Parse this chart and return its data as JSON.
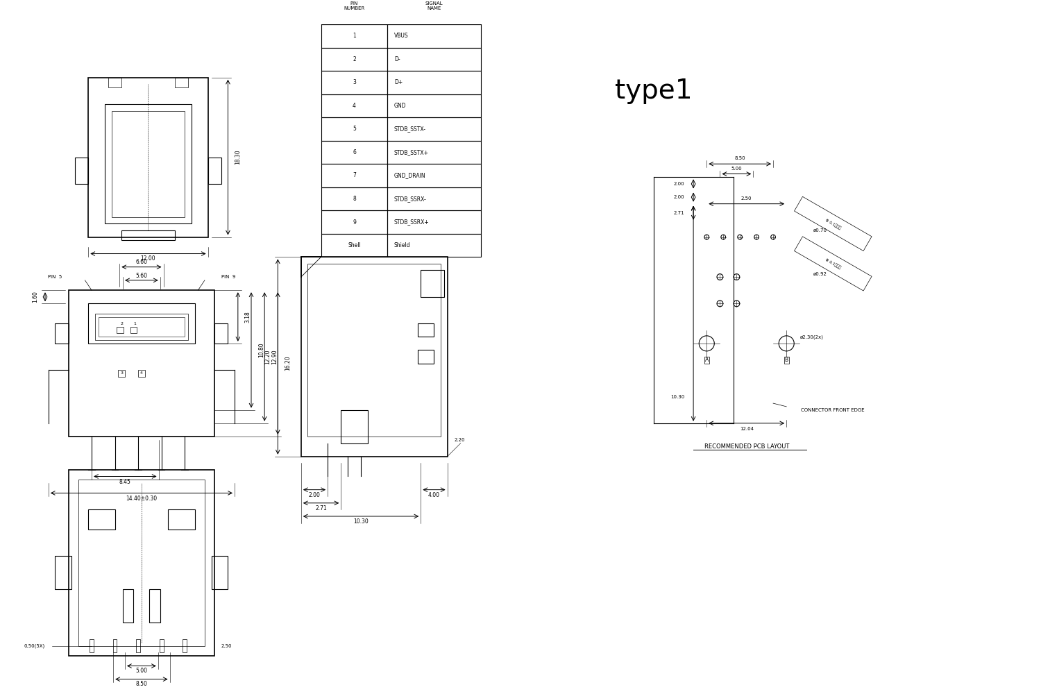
{
  "bg_color": "#ffffff",
  "line_color": "#000000",
  "title": "type1",
  "table_headers": [
    "PIN\nNUMBER",
    "SIGNAL\nNAME"
  ],
  "table_rows": [
    [
      "1",
      "VBUS"
    ],
    [
      "2",
      "D-"
    ],
    [
      "3",
      "D+"
    ],
    [
      "4",
      "GND"
    ],
    [
      "5",
      "STDB_SSTX-"
    ],
    [
      "6",
      "STDB_SSTX+"
    ],
    [
      "7",
      "GND_DRAIN"
    ],
    [
      "8",
      "STDB_SSRX-"
    ],
    [
      "9",
      "STDB_SSRX+"
    ],
    [
      "Shell",
      "Shield"
    ]
  ],
  "pcb_label": "RECOMMENDED PCB LAYOUT",
  "front_edge_label": "CONNECTOR FRONT EDGE"
}
